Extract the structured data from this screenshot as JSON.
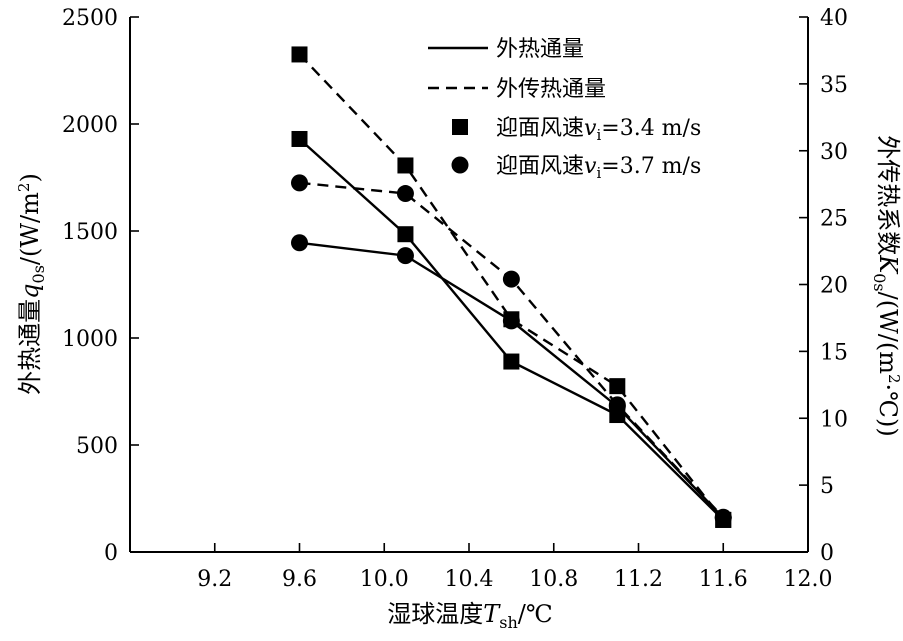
{
  "chart_data": {
    "type": "line",
    "xlabel": "湿球温度T_sh/℃",
    "ylabel_left": "外热通量q_0s/(W/m^2)",
    "ylabel_right": "外传热系数K_0s/(W/(m^2·℃))",
    "xlim": [
      8.8,
      12.0
    ],
    "ylim_left": [
      0,
      2500
    ],
    "ylim_right": [
      0,
      40
    ],
    "x_ticks": [
      "9.2",
      "9.6",
      "10.0",
      "10.4",
      "10.8",
      "11.2",
      "11.6",
      "12.0"
    ],
    "y_left_ticks": [
      "0",
      "500",
      "1000",
      "1500",
      "2000",
      "2500"
    ],
    "y_right_ticks": [
      "0",
      "5",
      "10",
      "15",
      "20",
      "25",
      "30",
      "35",
      "40"
    ],
    "legend": {
      "position": "top-right",
      "entries": [
        {
          "label": "外热通量",
          "style": "solid-line"
        },
        {
          "label": "外传热通量",
          "style": "dashed-line"
        },
        {
          "label": "迎面风速v_i=3.4 m/s",
          "style": "square-marker"
        },
        {
          "label": "迎面风速v_i=3.7 m/s",
          "style": "circle-marker"
        }
      ]
    },
    "series": [
      {
        "axis": "left",
        "line": "solid",
        "marker": "square",
        "x": [
          9.6,
          10.1,
          10.6,
          11.1,
          11.6
        ],
        "y": [
          1930,
          1485,
          890,
          640,
          150
        ]
      },
      {
        "axis": "left",
        "line": "solid",
        "marker": "circle",
        "x": [
          9.6,
          10.1,
          10.6,
          11.1,
          11.6
        ],
        "y": [
          1445,
          1385,
          1080,
          680,
          160
        ]
      },
      {
        "axis": "right",
        "line": "dashed",
        "marker": "square",
        "x": [
          9.6,
          10.1,
          10.6,
          11.1,
          11.6
        ],
        "y": [
          37.2,
          28.9,
          17.4,
          12.4,
          2.4
        ]
      },
      {
        "axis": "right",
        "line": "dashed",
        "marker": "circle",
        "x": [
          9.6,
          10.1,
          10.6,
          11.1,
          11.6
        ],
        "y": [
          27.6,
          26.8,
          20.4,
          11.0,
          2.6
        ]
      }
    ],
    "grid": false
  }
}
